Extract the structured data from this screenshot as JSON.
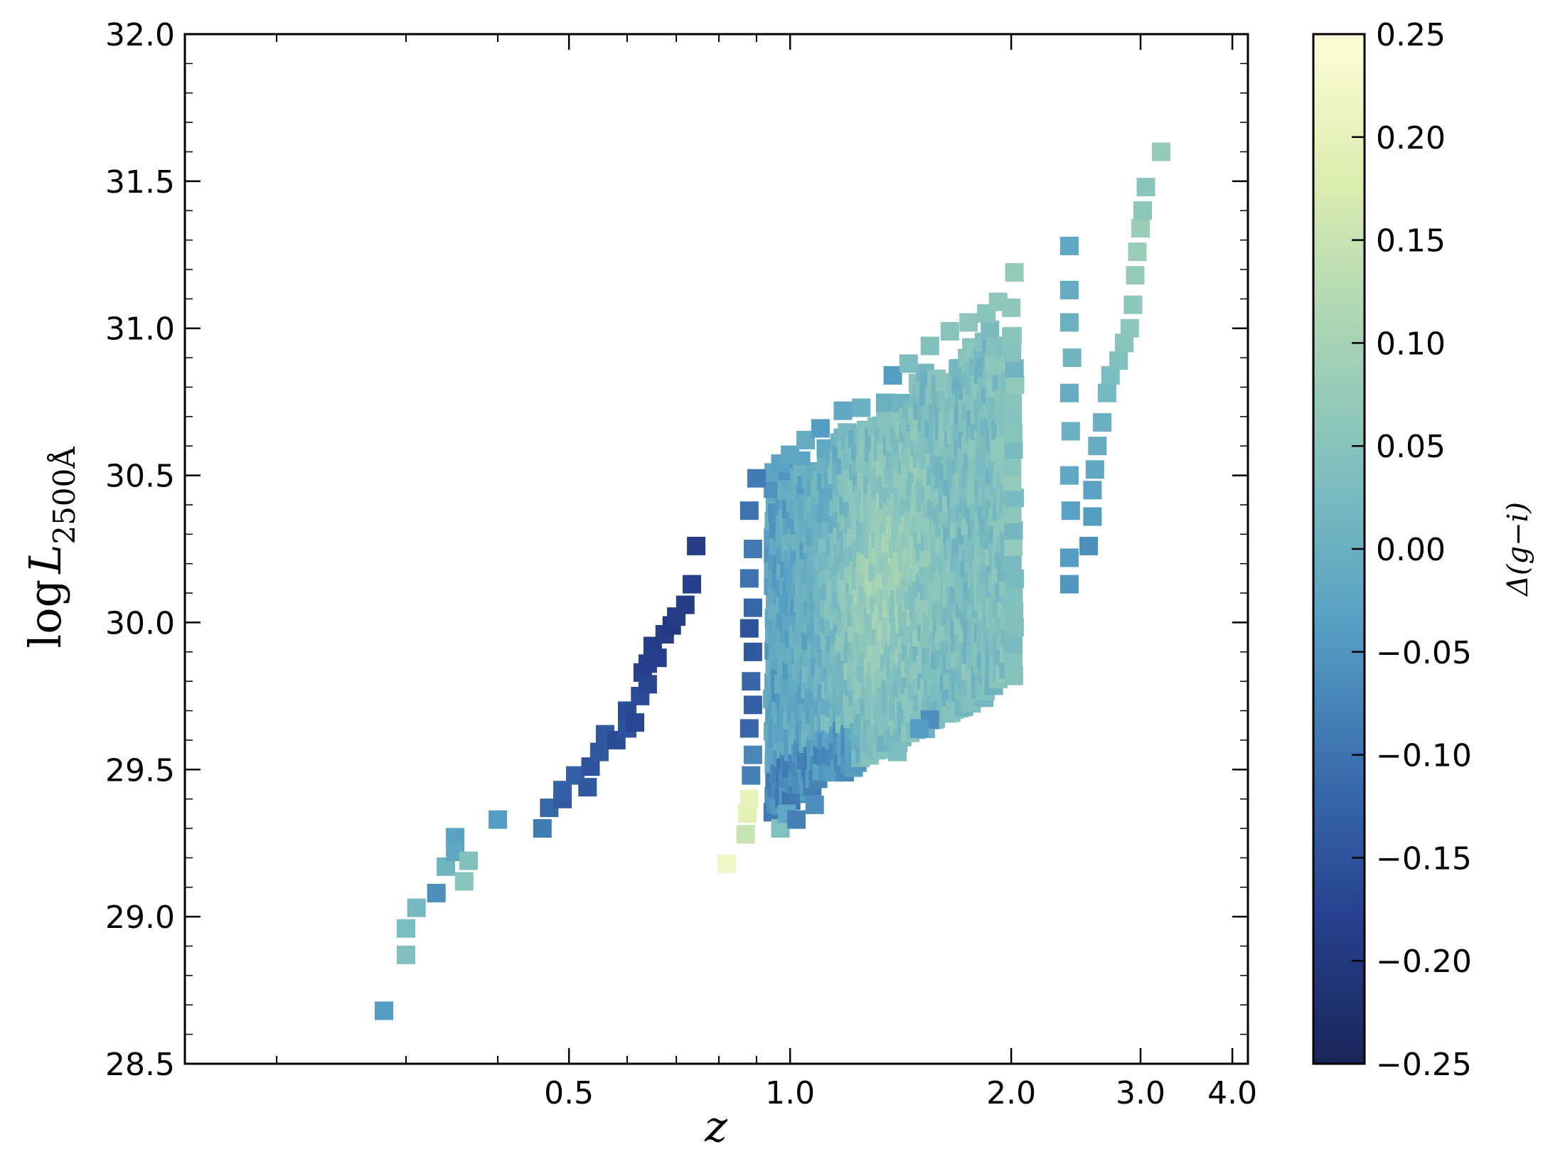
{
  "chart_data": {
    "type": "scatter",
    "marker": "square",
    "title": "",
    "xlabel": "z",
    "ylabel": "log L_2500Å",
    "ylabel_parts": {
      "main": "log",
      "symbol": "L",
      "subscript": "2500Å"
    },
    "xscale": "log",
    "xlim": [
      0.15,
      4.2
    ],
    "ylim": [
      28.5,
      32.0
    ],
    "xticks": [
      {
        "value": 0.5,
        "label": "0.5"
      },
      {
        "value": 1.0,
        "label": "1.0"
      },
      {
        "value": 2.0,
        "label": "2.0"
      },
      {
        "value": 3.0,
        "label": "3.0"
      },
      {
        "value": 4.0,
        "label": "4.0"
      }
    ],
    "yticks": [
      {
        "value": 28.5,
        "label": "28.5"
      },
      {
        "value": 29.0,
        "label": "29.0"
      },
      {
        "value": 29.5,
        "label": "29.5"
      },
      {
        "value": 30.0,
        "label": "30.0"
      },
      {
        "value": 30.5,
        "label": "30.5"
      },
      {
        "value": 31.0,
        "label": "31.0"
      },
      {
        "value": 31.5,
        "label": "31.5"
      },
      {
        "value": 32.0,
        "label": "32.0"
      }
    ],
    "colorbar": {
      "label": "Δ(g−i)",
      "vmin": -0.25,
      "vmax": 0.25,
      "colormap": "YlGnBu_r",
      "stops": [
        "#1a2659",
        "#26418f",
        "#3b6eaf",
        "#56a0c3",
        "#7fbfbf",
        "#aad5b4",
        "#dcedb0",
        "#fffdd6"
      ],
      "ticks": [
        {
          "value": 0.25,
          "label": "0.25"
        },
        {
          "value": 0.2,
          "label": "0.20"
        },
        {
          "value": 0.15,
          "label": "0.15"
        },
        {
          "value": 0.1,
          "label": "0.10"
        },
        {
          "value": 0.05,
          "label": "0.05"
        },
        {
          "value": 0.0,
          "label": "0.00"
        },
        {
          "value": -0.05,
          "label": "−0.05"
        },
        {
          "value": -0.1,
          "label": "−0.10"
        },
        {
          "value": -0.15,
          "label": "−0.15"
        },
        {
          "value": -0.2,
          "label": "−0.20"
        },
        {
          "value": -0.25,
          "label": "−0.25"
        }
      ]
    },
    "grid": false,
    "points": [
      [
        0.28,
        28.68,
        -0.04
      ],
      [
        0.3,
        28.87,
        0.04
      ],
      [
        0.3,
        28.96,
        0.03
      ],
      [
        0.31,
        29.03,
        0.02
      ],
      [
        0.33,
        29.08,
        -0.06
      ],
      [
        0.34,
        29.17,
        0.01
      ],
      [
        0.35,
        29.27,
        -0.03
      ],
      [
        0.35,
        29.22,
        -0.02
      ],
      [
        0.36,
        29.12,
        0.05
      ],
      [
        0.365,
        29.19,
        0.04
      ],
      [
        0.4,
        29.33,
        -0.04
      ],
      [
        0.46,
        29.3,
        -0.09
      ],
      [
        0.47,
        29.37,
        -0.12
      ],
      [
        0.49,
        29.4,
        -0.14
      ],
      [
        0.49,
        29.43,
        -0.13
      ],
      [
        0.51,
        29.48,
        -0.13
      ],
      [
        0.53,
        29.44,
        -0.14
      ],
      [
        0.535,
        29.51,
        -0.15
      ],
      [
        0.55,
        29.56,
        -0.14
      ],
      [
        0.56,
        29.62,
        -0.14
      ],
      [
        0.58,
        29.6,
        -0.16
      ],
      [
        0.6,
        29.64,
        -0.15
      ],
      [
        0.6,
        29.7,
        -0.16
      ],
      [
        0.615,
        29.66,
        -0.17
      ],
      [
        0.625,
        29.75,
        -0.16
      ],
      [
        0.63,
        29.83,
        -0.18
      ],
      [
        0.64,
        29.79,
        -0.17
      ],
      [
        0.64,
        29.86,
        -0.18
      ],
      [
        0.65,
        29.92,
        -0.19
      ],
      [
        0.66,
        29.88,
        -0.18
      ],
      [
        0.675,
        29.96,
        -0.19
      ],
      [
        0.69,
        29.99,
        -0.2
      ],
      [
        0.7,
        30.02,
        -0.19
      ],
      [
        0.72,
        30.06,
        -0.19
      ],
      [
        0.735,
        30.13,
        -0.18
      ],
      [
        0.745,
        30.26,
        -0.19
      ],
      [
        0.82,
        29.18,
        0.22
      ],
      [
        0.87,
        29.28,
        0.15
      ],
      [
        0.875,
        29.35,
        0.19
      ],
      [
        0.88,
        29.4,
        0.2
      ],
      [
        0.9,
        30.49,
        -0.09
      ],
      [
        0.88,
        30.38,
        -0.1
      ],
      [
        0.885,
        29.48,
        -0.08
      ],
      [
        0.89,
        29.55,
        -0.07
      ],
      [
        0.88,
        29.64,
        -0.12
      ],
      [
        0.89,
        29.72,
        -0.13
      ],
      [
        0.885,
        29.8,
        -0.12
      ],
      [
        0.89,
        29.9,
        -0.14
      ],
      [
        0.88,
        29.98,
        -0.15
      ],
      [
        0.89,
        30.05,
        -0.12
      ],
      [
        0.88,
        30.15,
        -0.1
      ],
      [
        0.89,
        30.25,
        -0.09
      ],
      [
        0.97,
        29.3,
        0.04
      ],
      [
        0.99,
        29.35,
        -0.02
      ],
      [
        1.02,
        29.33,
        -0.08
      ],
      [
        1.08,
        29.38,
        -0.06
      ],
      [
        0.97,
        30.54,
        -0.03
      ],
      [
        1.0,
        30.57,
        -0.02
      ],
      [
        1.05,
        30.62,
        -0.01
      ],
      [
        1.1,
        30.66,
        -0.04
      ],
      [
        1.18,
        30.72,
        -0.02
      ],
      [
        1.25,
        30.73,
        0.0
      ],
      [
        1.38,
        30.84,
        -0.04
      ],
      [
        1.45,
        30.88,
        0.03
      ],
      [
        1.55,
        30.94,
        0.04
      ],
      [
        1.65,
        30.99,
        0.05
      ],
      [
        1.75,
        31.02,
        0.06
      ],
      [
        1.85,
        31.05,
        0.05
      ],
      [
        1.92,
        31.09,
        0.06
      ],
      [
        2.02,
        31.19,
        0.07
      ],
      [
        2.0,
        31.07,
        0.06
      ],
      [
        2.0,
        30.97,
        0.05
      ],
      [
        1.55,
        29.67,
        -0.06
      ],
      [
        1.5,
        29.64,
        -0.04
      ],
      [
        1.4,
        29.56,
        0.03
      ],
      [
        2.4,
        31.28,
        -0.02
      ],
      [
        2.4,
        31.13,
        -0.01
      ],
      [
        2.4,
        31.02,
        0.0
      ],
      [
        2.42,
        30.9,
        0.01
      ],
      [
        2.4,
        30.78,
        -0.01
      ],
      [
        2.41,
        30.65,
        0.0
      ],
      [
        2.4,
        30.5,
        -0.02
      ],
      [
        2.41,
        30.38,
        -0.03
      ],
      [
        2.4,
        30.22,
        -0.04
      ],
      [
        2.4,
        30.13,
        -0.05
      ],
      [
        2.55,
        30.26,
        -0.06
      ],
      [
        2.58,
        30.36,
        -0.04
      ],
      [
        2.58,
        30.45,
        -0.03
      ],
      [
        2.6,
        30.52,
        -0.02
      ],
      [
        2.62,
        30.6,
        -0.01
      ],
      [
        2.66,
        30.68,
        0.0
      ],
      [
        2.7,
        30.78,
        0.02
      ],
      [
        2.73,
        30.84,
        0.03
      ],
      [
        2.8,
        30.89,
        0.04
      ],
      [
        2.85,
        30.95,
        0.05
      ],
      [
        2.9,
        31.0,
        0.06
      ],
      [
        2.93,
        31.08,
        0.06
      ],
      [
        2.95,
        31.18,
        0.07
      ],
      [
        2.97,
        31.26,
        0.08
      ],
      [
        3.0,
        31.34,
        0.08
      ],
      [
        3.02,
        31.4,
        0.06
      ],
      [
        3.05,
        31.48,
        0.05
      ],
      [
        3.2,
        31.6,
        0.07
      ]
    ],
    "density_region_note": "Dense cloud of many overlapping squares between z≈0.95 and z≈2.05, log L from ~29.4 to ~30.9, colors mostly around 0.00 to 0.15."
  }
}
